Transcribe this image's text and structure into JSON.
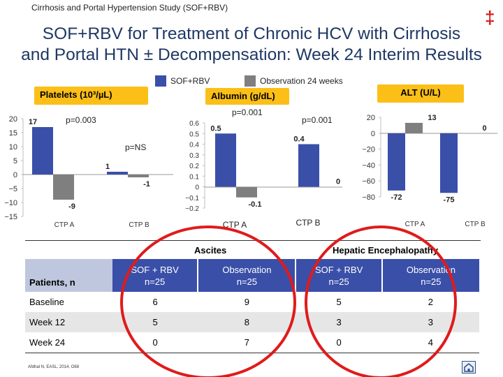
{
  "header": {
    "study_title": "Cirrhosis and Portal Hypertension Study (SOF+RBV)",
    "symbol": "‡"
  },
  "slide_title": {
    "line1": "SOF+RBV for Treatment of Chronic HCV with Cirrhosis",
    "line2": "and Portal HTN ± Decompensation: Week 24 Interim Results"
  },
  "legend": [
    {
      "label": "SOF+RBV",
      "color": "#3a4fa8"
    },
    {
      "label": "Observation 24 weeks",
      "color": "#7f7f7f"
    }
  ],
  "colors": {
    "sof": "#3a4fa8",
    "obs": "#7f7f7f",
    "label_box": "#fbbf18",
    "circle": "#e01b1b",
    "table_header": "#3a4fa8"
  },
  "chart_data": [
    {
      "type": "bar",
      "title": "Platelets (10³/µL)",
      "categories": [
        "CTP A",
        "CTP B"
      ],
      "series": [
        {
          "name": "SOF+RBV",
          "values": [
            17,
            1
          ]
        },
        {
          "name": "Observation 24 weeks",
          "values": [
            -9,
            -1
          ]
        }
      ],
      "data_labels": [
        [
          "17",
          "-9"
        ],
        [
          "1",
          "-1"
        ]
      ],
      "ylim": [
        -15,
        20
      ],
      "yticks": [
        "20",
        "15",
        "10",
        "5",
        "0",
        "−5",
        "−10",
        "−15"
      ],
      "annotations": [
        "p=0.003",
        "p=NS"
      ]
    },
    {
      "type": "bar",
      "title": "Albumin (g/dL)",
      "categories": [
        "CTP A",
        "CTP B"
      ],
      "series": [
        {
          "name": "SOF+RBV",
          "values": [
            0.5,
            0.4
          ]
        },
        {
          "name": "Observation 24 weeks",
          "values": [
            -0.1,
            0
          ]
        }
      ],
      "data_labels": [
        [
          "0.5",
          "-0.1"
        ],
        [
          "0.4",
          "0"
        ]
      ],
      "ylim": [
        -0.2,
        0.6
      ],
      "yticks": [
        "0.6",
        "0.5",
        "0.4",
        "0.3",
        "0.2",
        "0.1",
        "0",
        "−0.1",
        "−0.2"
      ],
      "annotations": [
        "p=0.001",
        "p=0.001"
      ]
    },
    {
      "type": "bar",
      "title": "ALT (U/L)",
      "categories": [
        "CTP A",
        "CTP B"
      ],
      "series": [
        {
          "name": "SOF+RBV",
          "values": [
            -72,
            -75
          ]
        },
        {
          "name": "Observation 24 weeks",
          "values": [
            13,
            0
          ]
        }
      ],
      "data_labels": [
        [
          "-72",
          "13"
        ],
        [
          "-75",
          "0"
        ]
      ],
      "ylim": [
        -80,
        20
      ],
      "yticks": [
        "20",
        "0",
        "−20",
        "−40",
        "−60",
        "−80"
      ],
      "annotations": []
    }
  ],
  "table": {
    "group_headers": [
      "Ascites",
      "Hepatic Encephalopathy"
    ],
    "row_header_label": "Patients, n",
    "column_headers": [
      "SOF + RBV n=25",
      "Observation n=25",
      "SOF + RBV n=25",
      "Observation n=25"
    ],
    "rows": [
      {
        "label": "Baseline",
        "values": [
          "6",
          "9",
          "5",
          "2"
        ]
      },
      {
        "label": "Week 12",
        "values": [
          "5",
          "8",
          "3",
          "3"
        ]
      },
      {
        "label": "Week 24",
        "values": [
          "0",
          "7",
          "0",
          "4"
        ]
      }
    ]
  },
  "citation": "Afdhal N, EASL, 2014, O68"
}
